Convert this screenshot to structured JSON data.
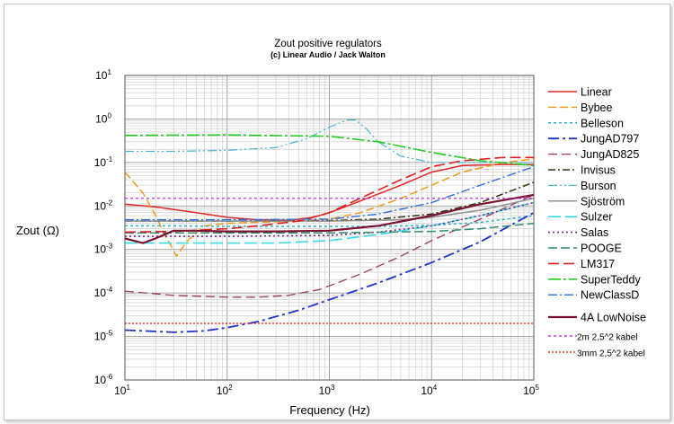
{
  "chart_data": {
    "type": "line",
    "title": "Zout positive regulators",
    "subtitle": "(c) Linear Audio / Jack Walton",
    "xlabel": "Frequency (Hz)",
    "ylabel": "Zout (Ω)",
    "x_scale": "log",
    "y_scale": "log",
    "xlim": [
      10,
      100000
    ],
    "ylim": [
      1e-06,
      10
    ],
    "grid": true,
    "legend_position": "right",
    "x_ticks": [
      {
        "base": "10",
        "exp": "1"
      },
      {
        "base": "10",
        "exp": "2"
      },
      {
        "base": "10",
        "exp": "3"
      },
      {
        "base": "10",
        "exp": "4"
      },
      {
        "base": "10",
        "exp": "5"
      }
    ],
    "y_ticks": [
      {
        "base": "10",
        "exp": "1"
      },
      {
        "base": "10",
        "exp": "0"
      },
      {
        "base": "10",
        "exp": "-1"
      },
      {
        "base": "10",
        "exp": "-2"
      },
      {
        "base": "10",
        "exp": "-3"
      },
      {
        "base": "10",
        "exp": "-4"
      },
      {
        "base": "10",
        "exp": "-5"
      },
      {
        "base": "10",
        "exp": "-6"
      }
    ],
    "series": [
      {
        "name": "Linear",
        "color": "#e32626",
        "dash": "solid",
        "width": 1.5,
        "x": [
          10,
          20,
          50,
          100,
          200,
          400,
          700,
          1000,
          2000,
          5000,
          10000,
          20000,
          50000,
          100000
        ],
        "y": [
          0.011,
          0.0095,
          0.007,
          0.0055,
          0.0048,
          0.0047,
          0.0055,
          0.007,
          0.013,
          0.03,
          0.06,
          0.085,
          0.09,
          0.09
        ]
      },
      {
        "name": "Bybee",
        "color": "#f29a1f",
        "dash": "9 4",
        "width": 1.5,
        "x": [
          10,
          15,
          20,
          25,
          32,
          40,
          60,
          100,
          200,
          500,
          1000,
          2000,
          5000,
          10000,
          20000,
          50000,
          100000
        ],
        "y": [
          0.06,
          0.02,
          0.006,
          0.002,
          0.0007,
          0.0015,
          0.0035,
          0.004,
          0.0042,
          0.0045,
          0.005,
          0.007,
          0.015,
          0.03,
          0.06,
          0.1,
          0.12
        ]
      },
      {
        "name": "Belleson",
        "color": "#29b3cc",
        "dash": "3 3",
        "width": 1.5,
        "x": [
          10,
          30,
          100,
          300,
          1000,
          3000,
          10000,
          30000,
          100000
        ],
        "y": [
          0.0035,
          0.0035,
          0.0034,
          0.0034,
          0.0034,
          0.0034,
          0.0036,
          0.0042,
          0.006
        ]
      },
      {
        "name": "JungAD797",
        "color": "#2234c8",
        "dash": "12 4 3 4",
        "width": 1.8,
        "x": [
          10,
          15,
          30,
          60,
          100,
          200,
          500,
          1000,
          3000,
          10000,
          30000,
          100000
        ],
        "y": [
          1.4e-05,
          1.35e-05,
          1.25e-05,
          1.35e-05,
          1.6e-05,
          2.2e-05,
          4e-05,
          7e-05,
          0.00017,
          0.0005,
          0.0015,
          0.007
        ]
      },
      {
        "name": "JungAD825",
        "color": "#9e3c5a",
        "dash": "10 5",
        "width": 1.3,
        "x": [
          10,
          30,
          100,
          200,
          400,
          800,
          2000,
          5000,
          10000,
          30000,
          100000
        ],
        "y": [
          0.00011,
          8.8e-05,
          8e-05,
          8e-05,
          8.8e-05,
          0.00012,
          0.00027,
          0.0007,
          0.0016,
          0.005,
          0.018
        ]
      },
      {
        "name": "Invisus",
        "color": "#3a3214",
        "dash": "8 3 2 3",
        "width": 1.5,
        "x": [
          10,
          100,
          1000,
          3000,
          10000,
          30000,
          100000
        ],
        "y": [
          0.0045,
          0.0045,
          0.0046,
          0.005,
          0.0065,
          0.012,
          0.035
        ]
      },
      {
        "name": "Burson",
        "color": "#4fb8d6",
        "dash": "10 3 2 3 2 3",
        "width": 1.3,
        "x": [
          10,
          30,
          100,
          300,
          600,
          1000,
          1500,
          1800,
          2300,
          3000,
          5000,
          10000,
          20000,
          50000,
          100000
        ],
        "y": [
          0.18,
          0.18,
          0.19,
          0.22,
          0.35,
          0.65,
          0.95,
          0.95,
          0.6,
          0.3,
          0.14,
          0.1,
          0.1,
          0.1,
          0.1
        ]
      },
      {
        "name": "Sjöström",
        "color": "#8f8f8f",
        "dash": "solid",
        "width": 1.5,
        "x": [
          10,
          100,
          1000,
          5000,
          10000,
          30000,
          100000
        ],
        "y": [
          0.0045,
          0.0045,
          0.0045,
          0.0048,
          0.0055,
          0.008,
          0.015
        ]
      },
      {
        "name": "Sulzer",
        "color": "#38dcec",
        "dash": "14 5",
        "width": 1.6,
        "x": [
          10,
          30,
          100,
          300,
          1000,
          3000,
          10000,
          30000,
          100000
        ],
        "y": [
          0.0014,
          0.0014,
          0.0014,
          0.0014,
          0.0016,
          0.0022,
          0.0035,
          0.006,
          0.012
        ]
      },
      {
        "name": "Salas",
        "color": "#7a2c82",
        "dash": "2 3",
        "width": 1.6,
        "x": [
          10,
          100,
          1000,
          3000,
          10000,
          30000,
          100000
        ],
        "y": [
          0.002,
          0.002,
          0.0021,
          0.0025,
          0.0035,
          0.006,
          0.012
        ]
      },
      {
        "name": "POOGE",
        "color": "#2f8e70",
        "dash": "10 4",
        "width": 1.5,
        "x": [
          10,
          100,
          1000,
          10000,
          30000,
          100000
        ],
        "y": [
          0.0024,
          0.0024,
          0.0024,
          0.0026,
          0.003,
          0.004
        ]
      },
      {
        "name": "LM317",
        "color": "#de1e1e",
        "dash": "12 5",
        "width": 1.6,
        "x": [
          10,
          30,
          100,
          200,
          500,
          1000,
          2000,
          5000,
          10000,
          20000,
          50000,
          100000
        ],
        "y": [
          0.0025,
          0.0026,
          0.003,
          0.0035,
          0.0045,
          0.007,
          0.015,
          0.04,
          0.08,
          0.11,
          0.13,
          0.13
        ]
      },
      {
        "name": "SuperTeddy",
        "color": "#22cc22",
        "dash": "14 3 3 3",
        "width": 1.6,
        "x": [
          10,
          100,
          1000,
          3000,
          10000,
          30000,
          100000
        ],
        "y": [
          0.42,
          0.43,
          0.4,
          0.3,
          0.17,
          0.11,
          0.085
        ]
      },
      {
        "name": "NewClassD",
        "color": "#2f6fd8",
        "dash": "10 3 2 3",
        "width": 1.4,
        "x": [
          10,
          100,
          1000,
          3000,
          10000,
          30000,
          100000
        ],
        "y": [
          0.0048,
          0.0048,
          0.005,
          0.0065,
          0.012,
          0.03,
          0.08
        ]
      },
      {
        "name": "4A LowNoise",
        "color": "#7a1230",
        "dash": "solid",
        "width": 2.2,
        "x": [
          10,
          15,
          20,
          30,
          50,
          100,
          300,
          1000,
          3000,
          10000,
          30000,
          100000
        ],
        "y": [
          0.0018,
          0.0014,
          0.0018,
          0.0027,
          0.0027,
          0.0026,
          0.0026,
          0.0027,
          0.0035,
          0.006,
          0.011,
          0.018
        ]
      },
      {
        "name": "2m 2,5^2 kabel",
        "color": "#b418e0",
        "dash": "3 3",
        "width": 1.2,
        "x": [
          10,
          100000
        ],
        "y": [
          0.015,
          0.015
        ]
      },
      {
        "name": "3mm 2,5^2 kabel",
        "color": "#e81e1e",
        "dash": "2 2",
        "width": 1.2,
        "x": [
          10,
          100000
        ],
        "y": [
          2e-05,
          2e-05
        ]
      }
    ]
  }
}
